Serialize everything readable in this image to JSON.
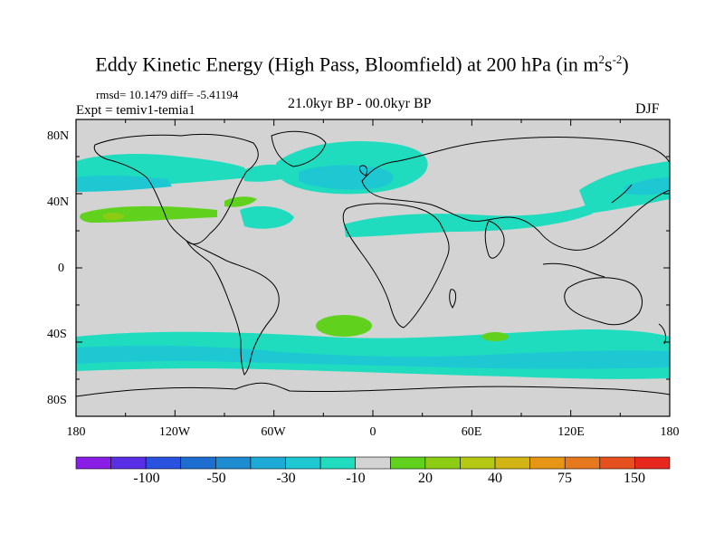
{
  "title": {
    "main": "Eddy Kinetic Energy (High Pass, Bloomfield) at 200 hPa (in m",
    "sup1": "2",
    "mid": "s",
    "sup2": "-2",
    "end": ")"
  },
  "stats": "rmsd= 10.1479 diff= -5.41194",
  "experiment": "Expt = temiv1-temia1",
  "period": "21.0kyr BP - 00.0kyr BP",
  "season": "DJF",
  "map": {
    "lat_ticks": [
      "80N",
      "40N",
      "0",
      "40S",
      "80S"
    ],
    "lon_ticks": [
      "180",
      "120W",
      "60W",
      "0",
      "60E",
      "120E",
      "180"
    ],
    "background_color": "#d3d3d3",
    "regions": [
      {
        "name": "north-pacific-storm-track",
        "level": "-10"
      },
      {
        "name": "north-atlantic-storm-track",
        "level": "-30"
      },
      {
        "name": "subtropical-pacific-jet",
        "level": "20"
      },
      {
        "name": "south-atlantic-blob",
        "level": "20"
      },
      {
        "name": "indian-ocean-blob",
        "level": "20"
      },
      {
        "name": "southern-ocean-storm-track",
        "level": "-30"
      }
    ]
  },
  "colorbar": {
    "colors": [
      "#8a1ee6",
      "#5a2ee6",
      "#2a52e0",
      "#1e6ed2",
      "#1e8cd0",
      "#1eaad6",
      "#1ec8d2",
      "#20dcbe",
      "#d3d3d3",
      "#60d21e",
      "#8ccd14",
      "#b4c814",
      "#d2b414",
      "#e69614",
      "#e6781e",
      "#e6501e",
      "#e6281e"
    ],
    "labels": [
      "-100",
      "-50",
      "-30",
      "-10",
      "20",
      "40",
      "75",
      "150"
    ],
    "label_boundaries": [
      2,
      4,
      6,
      8,
      10,
      12,
      14,
      16
    ]
  }
}
